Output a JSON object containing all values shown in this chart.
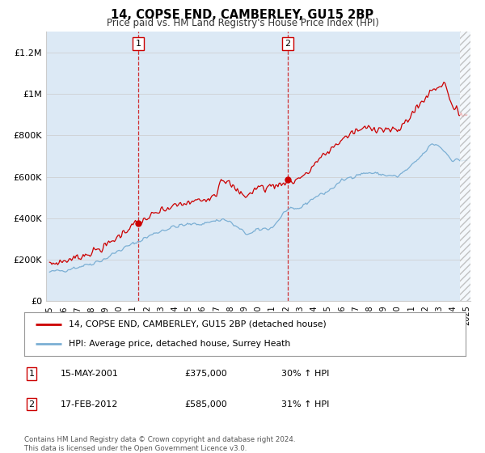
{
  "title": "14, COPSE END, CAMBERLEY, GU15 2BP",
  "subtitle": "Price paid vs. HM Land Registry's House Price Index (HPI)",
  "ylim": [
    0,
    1300000
  ],
  "xlim": [
    1994.75,
    2025.25
  ],
  "yticks": [
    0,
    200000,
    400000,
    600000,
    800000,
    1000000,
    1200000
  ],
  "ytick_labels": [
    "£0",
    "£200K",
    "£400K",
    "£600K",
    "£800K",
    "£1M",
    "£1.2M"
  ],
  "xticks": [
    1995,
    1996,
    1997,
    1998,
    1999,
    2000,
    2001,
    2002,
    2003,
    2004,
    2005,
    2006,
    2007,
    2008,
    2009,
    2010,
    2011,
    2012,
    2013,
    2014,
    2015,
    2016,
    2017,
    2018,
    2019,
    2020,
    2021,
    2022,
    2023,
    2024,
    2025
  ],
  "sale1_x": 2001.37,
  "sale1_y": 375000,
  "sale2_x": 2012.12,
  "sale2_y": 585000,
  "sale1_label": "15-MAY-2001",
  "sale1_price": "£375,000",
  "sale1_hpi": "30% ↑ HPI",
  "sale2_label": "17-FEB-2012",
  "sale2_price": "£585,000",
  "sale2_hpi": "31% ↑ HPI",
  "legend_line1": "14, COPSE END, CAMBERLEY, GU15 2BP (detached house)",
  "legend_line2": "HPI: Average price, detached house, Surrey Heath",
  "footer": "Contains HM Land Registry data © Crown copyright and database right 2024.\nThis data is licensed under the Open Government Licence v3.0.",
  "bg_color": "#dce9f5",
  "plot_bg_color": "#ffffff",
  "red_line_color": "#cc0000",
  "blue_line_color": "#7bafd4",
  "grid_color": "#cccccc"
}
